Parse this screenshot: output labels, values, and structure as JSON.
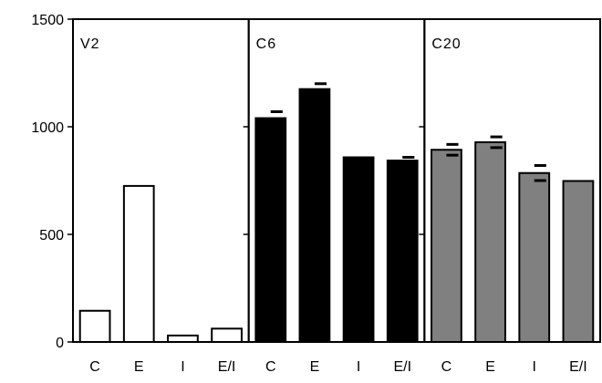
{
  "chart_data": {
    "type": "bar",
    "ylim": [
      0,
      1500
    ],
    "yticks": [
      0,
      500,
      1000,
      1500
    ],
    "grid": false,
    "categories": [
      "C",
      "E",
      "I",
      "E/I"
    ],
    "panels": [
      {
        "label": "V2",
        "fill": "#ffffff",
        "values": [
          145,
          725,
          30,
          62
        ],
        "errors": [
          0,
          0,
          0,
          0
        ]
      },
      {
        "label": "C6",
        "fill": "#000000",
        "values": [
          1040,
          1175,
          858,
          843
        ],
        "errors": [
          30,
          25,
          0,
          15
        ]
      },
      {
        "label": "C20",
        "fill": "#808080",
        "values": [
          893,
          928,
          785,
          748
        ],
        "errors": [
          25,
          25,
          35,
          0
        ]
      }
    ]
  }
}
